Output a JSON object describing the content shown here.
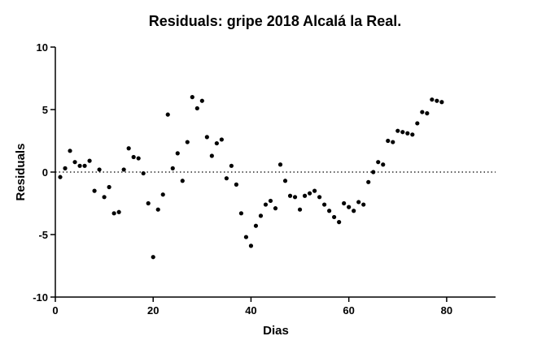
{
  "chart_data": {
    "type": "scatter",
    "title": "Residuals: gripe 2018 Alcalá la Real.",
    "xlabel": "Dias",
    "ylabel": "Residuals",
    "xlim": [
      0,
      90
    ],
    "ylim": [
      -10,
      10
    ],
    "x_ticks": [
      0,
      20,
      40,
      60,
      80
    ],
    "y_ticks": [
      -10,
      -5,
      0,
      5,
      10
    ],
    "x_tick_labels": [
      "0",
      "20",
      "40",
      "60",
      "80"
    ],
    "y_tick_labels": [
      "-10",
      "-5",
      "0",
      "5",
      "10"
    ],
    "reference_line": {
      "y": 0,
      "style": "dotted"
    },
    "grid": false,
    "marker_color": "#000000",
    "series": [
      {
        "points": [
          [
            1,
            -0.4
          ],
          [
            2,
            0.3
          ],
          [
            3,
            1.7
          ],
          [
            4,
            0.8
          ],
          [
            5,
            0.5
          ],
          [
            6,
            0.5
          ],
          [
            7,
            0.9
          ],
          [
            8,
            -1.5
          ],
          [
            9,
            0.2
          ],
          [
            10,
            -2.0
          ],
          [
            11,
            -1.2
          ],
          [
            12,
            -3.3
          ],
          [
            13,
            -3.2
          ],
          [
            14,
            0.2
          ],
          [
            15,
            1.9
          ],
          [
            16,
            1.2
          ],
          [
            17,
            1.1
          ],
          [
            18,
            -0.1
          ],
          [
            19,
            -2.5
          ],
          [
            20,
            -6.8
          ],
          [
            21,
            -3.0
          ],
          [
            22,
            -1.8
          ],
          [
            23,
            4.6
          ],
          [
            24,
            0.3
          ],
          [
            25,
            1.5
          ],
          [
            26,
            -0.7
          ],
          [
            27,
            2.4
          ],
          [
            28,
            6.0
          ],
          [
            29,
            5.1
          ],
          [
            30,
            5.7
          ],
          [
            31,
            2.8
          ],
          [
            32,
            1.3
          ],
          [
            33,
            2.3
          ],
          [
            34,
            2.6
          ],
          [
            35,
            -0.5
          ],
          [
            36,
            0.5
          ],
          [
            37,
            -1.0
          ],
          [
            38,
            -3.3
          ],
          [
            39,
            -5.2
          ],
          [
            40,
            -5.9
          ],
          [
            41,
            -4.3
          ],
          [
            42,
            -3.5
          ],
          [
            43,
            -2.6
          ],
          [
            44,
            -2.3
          ],
          [
            45,
            -2.9
          ],
          [
            46,
            0.6
          ],
          [
            47,
            -0.7
          ],
          [
            48,
            -1.9
          ],
          [
            49,
            -2.0
          ],
          [
            50,
            -3.0
          ],
          [
            51,
            -1.9
          ],
          [
            52,
            -1.7
          ],
          [
            53,
            -1.5
          ],
          [
            54,
            -2.0
          ],
          [
            55,
            -2.6
          ],
          [
            56,
            -3.1
          ],
          [
            57,
            -3.6
          ],
          [
            58,
            -4.0
          ],
          [
            59,
            -2.5
          ],
          [
            60,
            -2.8
          ],
          [
            61,
            -3.1
          ],
          [
            62,
            -2.4
          ],
          [
            63,
            -2.6
          ],
          [
            64,
            -0.8
          ],
          [
            65,
            0.0
          ],
          [
            66,
            0.8
          ],
          [
            67,
            0.6
          ],
          [
            68,
            2.5
          ],
          [
            69,
            2.4
          ],
          [
            70,
            3.3
          ],
          [
            71,
            3.2
          ],
          [
            72,
            3.1
          ],
          [
            73,
            3.0
          ],
          [
            74,
            3.9
          ],
          [
            75,
            4.8
          ],
          [
            76,
            4.7
          ],
          [
            77,
            5.8
          ],
          [
            78,
            5.7
          ],
          [
            79,
            5.6
          ]
        ]
      }
    ]
  }
}
